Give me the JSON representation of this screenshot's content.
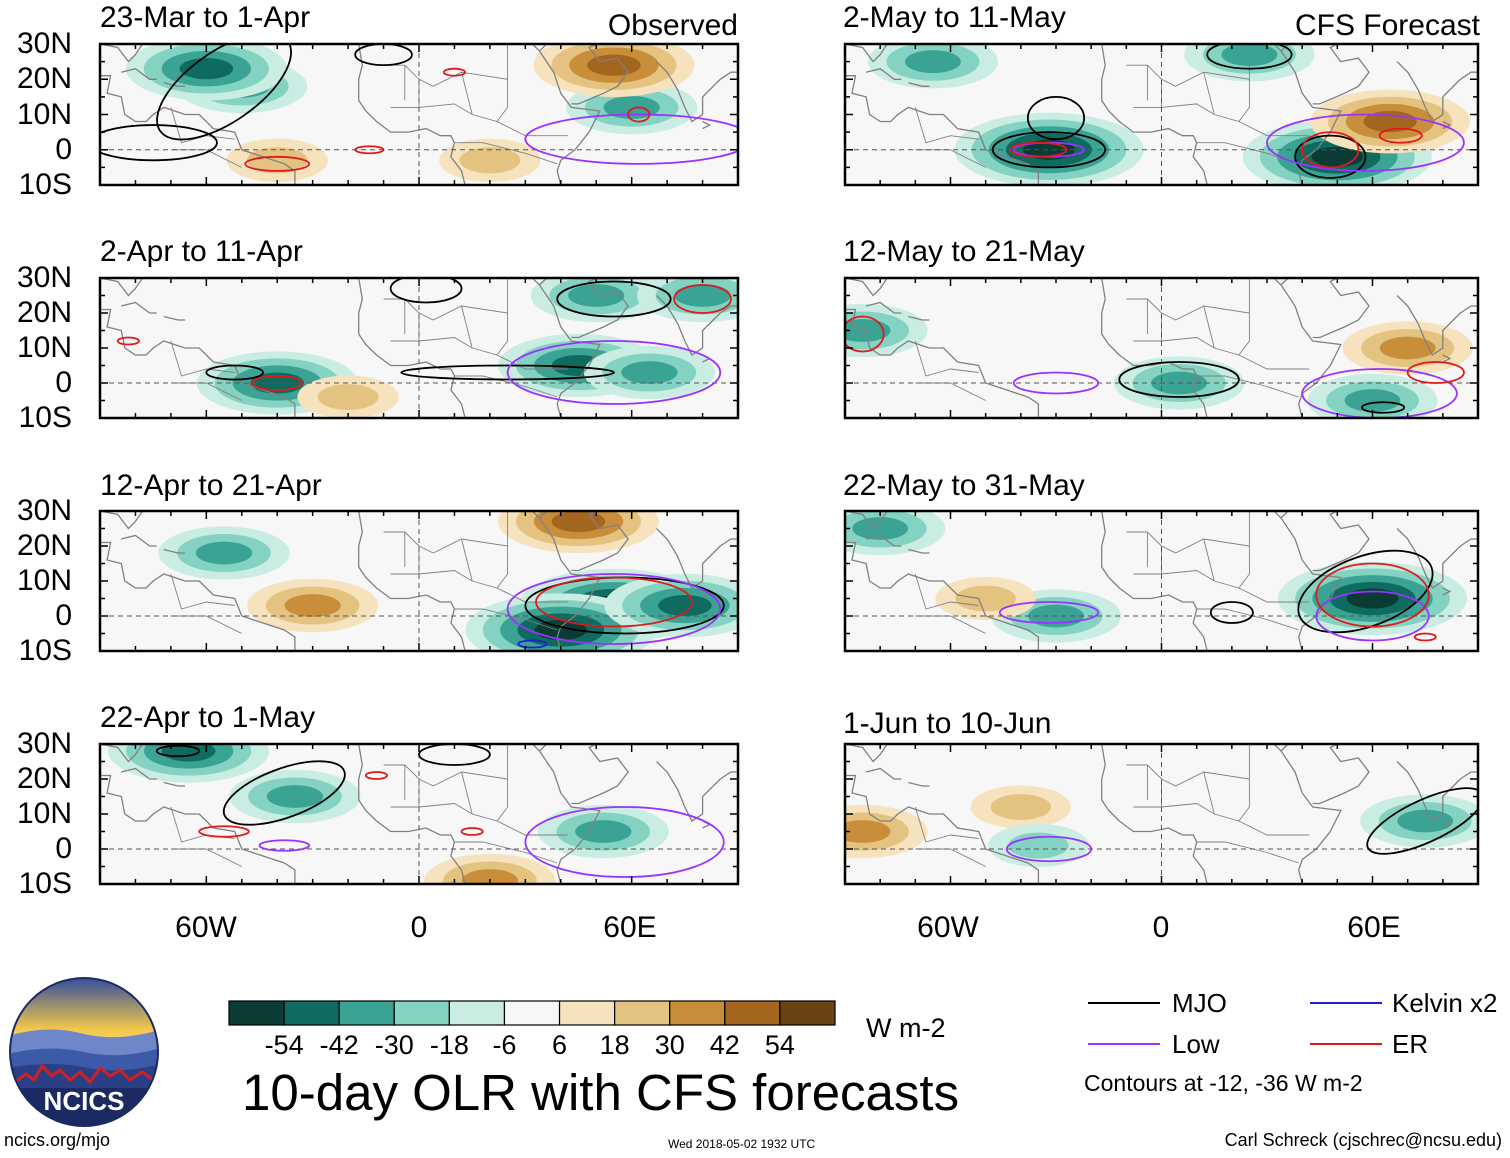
{
  "colors": {
    "neg54": "#0b3b35",
    "neg42": "#0f6a60",
    "neg30": "#3aa394",
    "neg18": "#84d2c1",
    "neg6": "#c9ece3",
    "zero": "#f7f7f7",
    "pos6": "#f6e2bd",
    "pos18": "#e4c381",
    "pos30": "#c98e3a",
    "pos42": "#a4651f",
    "pos54": "#6a4314",
    "mjo": "#000000",
    "low": "#9933ff",
    "kelvin": "#1f1fd6",
    "er": "#e01a1a",
    "land": "#808080"
  },
  "figure_title": "10-day OLR with CFS forecasts",
  "left_header": "Observed",
  "right_header": "CFS Forecast",
  "lat_labels": [
    "30N",
    "20N",
    "10N",
    "0",
    "10S"
  ],
  "lon_labels": [
    "60W",
    "0",
    "60E"
  ],
  "colorbar": {
    "ticks": [
      "-54",
      "-42",
      "-30",
      "-18",
      "-6",
      "6",
      "18",
      "30",
      "42",
      "54"
    ],
    "units": "W m-2"
  },
  "legend": {
    "mjo": "MJO",
    "kelvin": "Kelvin x2",
    "low": "Low",
    "er": "ER",
    "note": "Contours at -12, -36 W m-2"
  },
  "footer": {
    "left": "ncics.org/mjo",
    "center": "Wed 2018-05-02 1932 UTC",
    "right": "Carl Schreck (cjschrec@ncsu.edu)"
  },
  "logo": {
    "text": "NCICS"
  },
  "chart_data": [
    {
      "type": "heatmap",
      "title": "23-Mar to 1-Apr",
      "source": "Observed",
      "lon_range": [
        -90,
        90
      ],
      "lat_range": [
        -10,
        30
      ],
      "units": "W m-2",
      "anomalies": [
        {
          "lon": -50,
          "lat": 18,
          "value": -30
        },
        {
          "lon": -60,
          "lat": 23,
          "value": -42
        },
        {
          "lon": 60,
          "lat": 12,
          "value": -30
        },
        {
          "lon": 55,
          "lat": 24,
          "value": 42
        },
        {
          "lon": -40,
          "lat": -3,
          "value": 18
        },
        {
          "lon": 20,
          "lat": -3,
          "value": 18
        }
      ],
      "contours": [
        {
          "kind": "mjo",
          "lon": -55,
          "lat": 18,
          "rx": 22,
          "ry": 10,
          "rot": -35
        },
        {
          "kind": "mjo",
          "lon": -75,
          "lat": 2,
          "rx": 18,
          "ry": 5,
          "rot": 0
        },
        {
          "kind": "mjo",
          "lon": -10,
          "lat": 27,
          "rx": 8,
          "ry": 3,
          "rot": 0
        },
        {
          "kind": "low",
          "lon": 62,
          "lat": 3,
          "rx": 32,
          "ry": 7,
          "rot": 0
        },
        {
          "kind": "er",
          "lon": -40,
          "lat": -4,
          "rx": 9,
          "ry": 2,
          "rot": 0
        },
        {
          "kind": "er",
          "lon": -14,
          "lat": 0,
          "rx": 4,
          "ry": 1,
          "rot": 0
        },
        {
          "kind": "er",
          "lon": 62,
          "lat": 10,
          "rx": 3,
          "ry": 2,
          "rot": 0
        },
        {
          "kind": "er",
          "lon": 10,
          "lat": 22,
          "rx": 3,
          "ry": 1,
          "rot": 0
        }
      ]
    },
    {
      "type": "heatmap",
      "title": "2-Apr to 11-Apr",
      "source": "Observed",
      "lon_range": [
        -90,
        90
      ],
      "lat_range": [
        -10,
        30
      ],
      "units": "W m-2",
      "anomalies": [
        {
          "lon": 50,
          "lat": 25,
          "value": -30
        },
        {
          "lon": 45,
          "lat": 5,
          "value": -42
        },
        {
          "lon": 65,
          "lat": 3,
          "value": -30
        },
        {
          "lon": -40,
          "lat": 0,
          "value": -42
        },
        {
          "lon": -20,
          "lat": -4,
          "value": 18
        },
        {
          "lon": 80,
          "lat": 25,
          "value": -30
        }
      ],
      "contours": [
        {
          "kind": "mjo",
          "lon": 2,
          "lat": 27,
          "rx": 10,
          "ry": 4,
          "rot": 0
        },
        {
          "kind": "mjo",
          "lon": 55,
          "lat": 24,
          "rx": 16,
          "ry": 5,
          "rot": 0
        },
        {
          "kind": "mjo",
          "lon": 25,
          "lat": 3,
          "rx": 30,
          "ry": 2,
          "rot": 0
        },
        {
          "kind": "mjo",
          "lon": -52,
          "lat": 3,
          "rx": 8,
          "ry": 2,
          "rot": 0
        },
        {
          "kind": "low",
          "lon": 55,
          "lat": 3,
          "rx": 30,
          "ry": 9,
          "rot": 0
        },
        {
          "kind": "er",
          "lon": -40,
          "lat": 0,
          "rx": 7,
          "ry": 2,
          "rot": 0
        },
        {
          "kind": "er",
          "lon": 80,
          "lat": 24,
          "rx": 8,
          "ry": 4,
          "rot": 0
        },
        {
          "kind": "er",
          "lon": -82,
          "lat": 12,
          "rx": 3,
          "ry": 1,
          "rot": 0
        }
      ]
    },
    {
      "type": "heatmap",
      "title": "12-Apr to 21-Apr",
      "source": "Observed",
      "lon_range": [
        -90,
        90
      ],
      "lat_range": [
        -10,
        30
      ],
      "units": "W m-2",
      "anomalies": [
        {
          "lon": 55,
          "lat": 3,
          "value": -54
        },
        {
          "lon": 40,
          "lat": -4,
          "value": -54
        },
        {
          "lon": 75,
          "lat": 3,
          "value": -42
        },
        {
          "lon": -55,
          "lat": 18,
          "value": -30
        },
        {
          "lon": -30,
          "lat": 3,
          "value": 30
        },
        {
          "lon": 45,
          "lat": 27,
          "value": 42
        }
      ],
      "contours": [
        {
          "kind": "mjo",
          "lon": 58,
          "lat": 3,
          "rx": 28,
          "ry": 8,
          "rot": 0
        },
        {
          "kind": "low",
          "lon": 55,
          "lat": 2,
          "rx": 30,
          "ry": 10,
          "rot": 0
        },
        {
          "kind": "er",
          "lon": 55,
          "lat": 4,
          "rx": 22,
          "ry": 7,
          "rot": 0
        },
        {
          "kind": "kelvin",
          "lon": 32,
          "lat": -8,
          "rx": 4,
          "ry": 1,
          "rot": 0
        }
      ]
    },
    {
      "type": "heatmap",
      "title": "22-Apr to 1-May",
      "source": "Observed",
      "lon_range": [
        -90,
        90
      ],
      "lat_range": [
        -10,
        30
      ],
      "units": "W m-2",
      "anomalies": [
        {
          "lon": -35,
          "lat": 15,
          "value": -30
        },
        {
          "lon": -65,
          "lat": 28,
          "value": -42
        },
        {
          "lon": 52,
          "lat": 5,
          "value": -30
        },
        {
          "lon": 20,
          "lat": -9,
          "value": 30
        }
      ],
      "contours": [
        {
          "kind": "mjo",
          "lon": -38,
          "lat": 16,
          "rx": 18,
          "ry": 7,
          "rot": -20
        },
        {
          "kind": "mjo",
          "lon": -68,
          "lat": 28,
          "rx": 6,
          "ry": 1.5,
          "rot": 0
        },
        {
          "kind": "mjo",
          "lon": 10,
          "lat": 27,
          "rx": 10,
          "ry": 3,
          "rot": 0
        },
        {
          "kind": "low",
          "lon": 58,
          "lat": 2,
          "rx": 28,
          "ry": 10,
          "rot": 0
        },
        {
          "kind": "low",
          "lon": -38,
          "lat": 1,
          "rx": 7,
          "ry": 1.5,
          "rot": 0
        },
        {
          "kind": "er",
          "lon": -55,
          "lat": 5,
          "rx": 7,
          "ry": 1.5,
          "rot": 0
        },
        {
          "kind": "er",
          "lon": 15,
          "lat": 5,
          "rx": 3,
          "ry": 1,
          "rot": 0
        },
        {
          "kind": "er",
          "lon": -12,
          "lat": 21,
          "rx": 3,
          "ry": 1,
          "rot": 0
        }
      ]
    },
    {
      "type": "heatmap",
      "title": "2-May to 11-May",
      "source": "CFS Forecast",
      "lon_range": [
        -90,
        90
      ],
      "lat_range": [
        -10,
        30
      ],
      "units": "W m-2",
      "anomalies": [
        {
          "lon": -32,
          "lat": 0,
          "value": -54
        },
        {
          "lon": 50,
          "lat": -2,
          "value": -54
        },
        {
          "lon": 25,
          "lat": 27,
          "value": -30
        },
        {
          "lon": 65,
          "lat": 8,
          "value": 42
        },
        {
          "lon": -65,
          "lat": 25,
          "value": -30
        }
      ],
      "contours": [
        {
          "kind": "mjo",
          "lon": -32,
          "lat": 0,
          "rx": 16,
          "ry": 5,
          "rot": 0
        },
        {
          "kind": "mjo",
          "lon": -30,
          "lat": 9,
          "rx": 8,
          "ry": 6,
          "rot": 0
        },
        {
          "kind": "mjo",
          "lon": 25,
          "lat": 27,
          "rx": 12,
          "ry": 4,
          "rot": 0
        },
        {
          "kind": "mjo",
          "lon": 48,
          "lat": -2,
          "rx": 10,
          "ry": 6,
          "rot": 0
        },
        {
          "kind": "low",
          "lon": 58,
          "lat": 2,
          "rx": 28,
          "ry": 8,
          "rot": 0
        },
        {
          "kind": "low",
          "lon": -32,
          "lat": 0,
          "rx": 10,
          "ry": 2,
          "rot": 0
        },
        {
          "kind": "er",
          "lon": -35,
          "lat": 0,
          "rx": 8,
          "ry": 2,
          "rot": 0
        },
        {
          "kind": "er",
          "lon": 48,
          "lat": 0,
          "rx": 8,
          "ry": 5,
          "rot": 0
        },
        {
          "kind": "er",
          "lon": 68,
          "lat": 4,
          "rx": 6,
          "ry": 2,
          "rot": 0
        }
      ]
    },
    {
      "type": "heatmap",
      "title": "12-May to 21-May",
      "source": "CFS Forecast",
      "lon_range": [
        -90,
        90
      ],
      "lat_range": [
        -10,
        30
      ],
      "units": "W m-2",
      "anomalies": [
        {
          "lon": 5,
          "lat": 0,
          "value": -30
        },
        {
          "lon": -85,
          "lat": 15,
          "value": -30
        },
        {
          "lon": 70,
          "lat": 10,
          "value": 30
        },
        {
          "lon": 60,
          "lat": -5,
          "value": -30
        }
      ],
      "contours": [
        {
          "kind": "mjo",
          "lon": 5,
          "lat": 1,
          "rx": 17,
          "ry": 5,
          "rot": 0
        },
        {
          "kind": "mjo",
          "lon": 63,
          "lat": -7,
          "rx": 6,
          "ry": 1.5,
          "rot": 0
        },
        {
          "kind": "low",
          "lon": -30,
          "lat": 0,
          "rx": 12,
          "ry": 3,
          "rot": 0
        },
        {
          "kind": "low",
          "lon": 62,
          "lat": -3,
          "rx": 22,
          "ry": 7,
          "rot": 0
        },
        {
          "kind": "er",
          "lon": 78,
          "lat": 3,
          "rx": 8,
          "ry": 3,
          "rot": 0
        },
        {
          "kind": "er",
          "lon": -85,
          "lat": 14,
          "rx": 6,
          "ry": 5,
          "rot": 0
        }
      ]
    },
    {
      "type": "heatmap",
      "title": "22-May to 31-May",
      "source": "CFS Forecast",
      "lon_range": [
        -90,
        90
      ],
      "lat_range": [
        -10,
        30
      ],
      "units": "W m-2",
      "anomalies": [
        {
          "lon": 60,
          "lat": 5,
          "value": -54
        },
        {
          "lon": -30,
          "lat": 0,
          "value": -30
        },
        {
          "lon": -80,
          "lat": 25,
          "value": -30
        },
        {
          "lon": -50,
          "lat": 5,
          "value": 18
        }
      ],
      "contours": [
        {
          "kind": "mjo",
          "lon": 58,
          "lat": 7,
          "rx": 20,
          "ry": 10,
          "rot": -20
        },
        {
          "kind": "mjo",
          "lon": 20,
          "lat": 1,
          "rx": 6,
          "ry": 3,
          "rot": 0
        },
        {
          "kind": "low",
          "lon": -32,
          "lat": 1,
          "rx": 14,
          "ry": 3,
          "rot": 0
        },
        {
          "kind": "low",
          "lon": 60,
          "lat": 0,
          "rx": 16,
          "ry": 7,
          "rot": 0
        },
        {
          "kind": "er",
          "lon": 60,
          "lat": 6,
          "rx": 16,
          "ry": 9,
          "rot": 0
        },
        {
          "kind": "er",
          "lon": 75,
          "lat": -6,
          "rx": 3,
          "ry": 1,
          "rot": 0
        }
      ]
    },
    {
      "type": "heatmap",
      "title": "1-Jun to 10-Jun",
      "source": "CFS Forecast",
      "lon_range": [
        -90,
        90
      ],
      "lat_range": [
        -10,
        30
      ],
      "units": "W m-2",
      "anomalies": [
        {
          "lon": 75,
          "lat": 8,
          "value": -30
        },
        {
          "lon": -40,
          "lat": 12,
          "value": 18
        },
        {
          "lon": -85,
          "lat": 5,
          "value": 30
        },
        {
          "lon": -35,
          "lat": 1,
          "value": -18
        }
      ],
      "contours": [
        {
          "kind": "mjo",
          "lon": 75,
          "lat": 8,
          "rx": 18,
          "ry": 6,
          "rot": -25
        },
        {
          "kind": "low",
          "lon": -32,
          "lat": 0,
          "rx": 12,
          "ry": 3.5,
          "rot": 0
        }
      ]
    }
  ]
}
